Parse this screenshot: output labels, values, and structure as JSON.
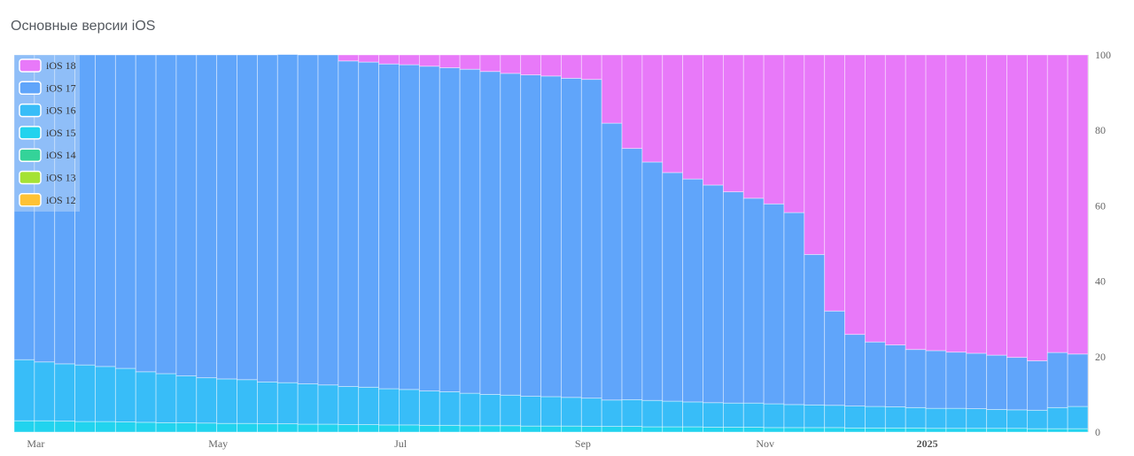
{
  "page": {
    "title": "Основные версии iOS"
  },
  "chart_data": {
    "type": "bar",
    "stacked": true,
    "title": "Основные версии iOS",
    "ylim": [
      0,
      100
    ],
    "y_ticks": [
      "0",
      "20",
      "40",
      "60",
      "80",
      "100"
    ],
    "y_axis_side": "right",
    "x_tick_labels": [
      {
        "label": "Mar",
        "index": 0,
        "bold": false
      },
      {
        "label": "May",
        "index": 9,
        "bold": false
      },
      {
        "label": "Jul",
        "index": 18,
        "bold": false
      },
      {
        "label": "Sep",
        "index": 27,
        "bold": false
      },
      {
        "label": "Nov",
        "index": 36,
        "bold": false
      },
      {
        "label": "2025",
        "index": 44,
        "bold": true
      }
    ],
    "legend_position": "top-left",
    "bar_count": 53,
    "series": [
      {
        "name": "iOS 12",
        "color": "#ffc234",
        "values": [
          0,
          0,
          0,
          0,
          0,
          0,
          0,
          0,
          0,
          0,
          0,
          0,
          0,
          0,
          0,
          0,
          0,
          0,
          0,
          0,
          0,
          0,
          0,
          0,
          0,
          0,
          0,
          0,
          0,
          0,
          0,
          0,
          0,
          0,
          0,
          0,
          0,
          0,
          0,
          0,
          0,
          0,
          0,
          0,
          0,
          0,
          0,
          0,
          0,
          0,
          0,
          0,
          0
        ]
      },
      {
        "name": "iOS 13",
        "color": "#a5e234",
        "values": [
          0,
          0,
          0,
          0,
          0,
          0,
          0,
          0,
          0,
          0,
          0,
          0,
          0,
          0,
          0,
          0,
          0,
          0,
          0,
          0,
          0,
          0,
          0,
          0,
          0,
          0,
          0,
          0,
          0,
          0,
          0,
          0,
          0,
          0,
          0,
          0,
          0,
          0,
          0,
          0,
          0,
          0,
          0,
          0,
          0,
          0,
          0,
          0,
          0,
          0,
          0,
          0,
          0
        ]
      },
      {
        "name": "iOS 14",
        "color": "#34d399",
        "values": [
          0,
          0,
          0,
          0,
          0,
          0,
          0,
          0,
          0,
          0,
          0,
          0,
          0,
          0,
          0,
          0,
          0,
          0,
          0,
          0,
          0,
          0,
          0,
          0,
          0,
          0,
          0,
          0,
          0,
          0,
          0,
          0,
          0,
          0,
          0,
          0,
          0,
          0,
          0,
          0,
          0,
          0,
          0,
          0,
          0,
          0,
          0,
          0,
          0,
          0,
          0,
          0,
          0
        ]
      },
      {
        "name": "iOS 15",
        "color": "#22d3ee",
        "values": [
          3.0,
          3.0,
          2.9,
          2.8,
          2.8,
          2.7,
          2.6,
          2.5,
          2.5,
          2.4,
          2.3,
          2.3,
          2.2,
          2.2,
          2.1,
          2.1,
          2.0,
          2.0,
          1.9,
          1.9,
          1.8,
          1.8,
          1.7,
          1.7,
          1.7,
          1.6,
          1.6,
          1.6,
          1.5,
          1.5,
          1.5,
          1.4,
          1.4,
          1.4,
          1.3,
          1.3,
          1.3,
          1.2,
          1.2,
          1.2,
          1.2,
          1.1,
          1.1,
          1.1,
          1.1,
          1.0,
          1.0,
          1.0,
          1.0,
          1.0,
          0.9,
          0.9,
          0.9
        ]
      },
      {
        "name": "iOS 16",
        "color": "#38bdf8",
        "values": [
          16.2,
          15.6,
          15.2,
          15.0,
          14.6,
          14.2,
          13.4,
          13.0,
          12.4,
          12.0,
          11.8,
          11.6,
          11.1,
          10.9,
          10.7,
          10.4,
          10.1,
          9.9,
          9.6,
          9.4,
          9.1,
          8.9,
          8.6,
          8.3,
          8.1,
          7.9,
          7.8,
          7.6,
          7.5,
          7.0,
          7.1,
          7.0,
          6.8,
          6.6,
          6.5,
          6.4,
          6.4,
          6.3,
          6.1,
          6.0,
          5.9,
          5.8,
          5.7,
          5.6,
          5.4,
          5.3,
          5.3,
          5.2,
          5.0,
          4.9,
          4.9,
          5.6,
          5.9
        ]
      },
      {
        "name": "iOS 17",
        "color": "#60a5fa",
        "values": [
          80.8,
          81.4,
          81.9,
          82.2,
          82.6,
          83.1,
          84.0,
          84.5,
          85.1,
          85.6,
          85.9,
          86.1,
          86.7,
          87.0,
          87.2,
          87.5,
          86.3,
          86.2,
          86.1,
          86.1,
          86.1,
          85.9,
          85.9,
          85.6,
          85.3,
          85.2,
          85.0,
          84.6,
          84.5,
          73.4,
          66.6,
          63.2,
          60.6,
          59.1,
          57.7,
          56.0,
          54.3,
          53.0,
          50.9,
          39.9,
          25.0,
          19.0,
          17.1,
          16.4,
          15.4,
          15.3,
          14.9,
          14.7,
          14.4,
          13.9,
          13.1,
          14.6,
          13.9
        ]
      },
      {
        "name": "iOS 18",
        "color": "#e879f9",
        "values": [
          0,
          0,
          0,
          0,
          0,
          0,
          0,
          0,
          0,
          0,
          0,
          0,
          0,
          0,
          0,
          0,
          1.6,
          1.9,
          2.4,
          2.6,
          3.0,
          3.4,
          3.8,
          4.4,
          4.9,
          5.3,
          5.6,
          6.2,
          6.5,
          18.1,
          24.8,
          28.4,
          31.2,
          32.9,
          34.5,
          36.3,
          38.0,
          39.5,
          41.8,
          52.9,
          67.9,
          74.1,
          76.1,
          76.9,
          78.1,
          78.4,
          78.8,
          79.1,
          79.6,
          80.2,
          81.1,
          78.9,
          79.3
        ]
      }
    ]
  }
}
